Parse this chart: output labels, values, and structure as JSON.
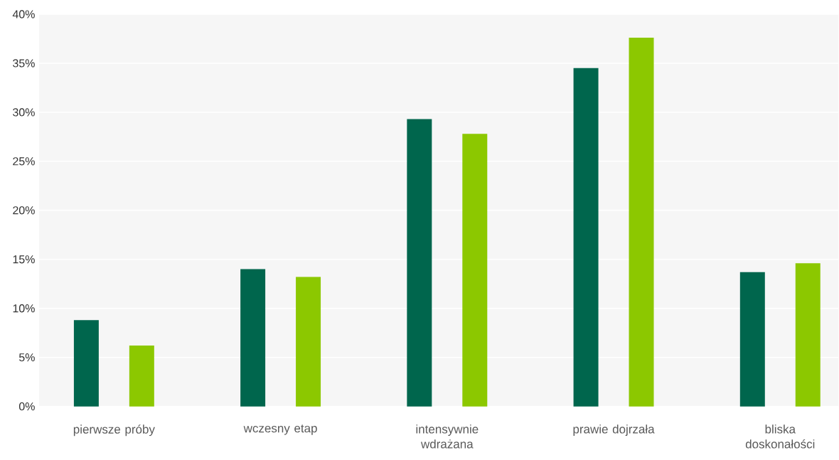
{
  "chart_data": {
    "type": "bar",
    "categories": [
      "pierwsze próby",
      "wczesny etap",
      "intensywnie wdrażana",
      "prawie dojrzała",
      "bliska doskonałości"
    ],
    "series": [
      {
        "color": "#00664d",
        "values": [
          8.8,
          14.0,
          29.3,
          34.5,
          13.7
        ]
      },
      {
        "color": "#8cc800",
        "values": [
          6.2,
          13.2,
          27.8,
          37.6,
          14.6
        ]
      }
    ],
    "ylim": [
      0,
      40
    ],
    "yticks": [
      {
        "value": 0,
        "label": "0%"
      },
      {
        "value": 5,
        "label": "5%"
      },
      {
        "value": 10,
        "label": "10%"
      },
      {
        "value": 15,
        "label": "15%"
      },
      {
        "value": 20,
        "label": "20%"
      },
      {
        "value": 25,
        "label": "25%"
      },
      {
        "value": 30,
        "label": "30%"
      },
      {
        "value": 35,
        "label": "35%"
      },
      {
        "value": 40,
        "label": "40%"
      }
    ],
    "grid": "y"
  }
}
